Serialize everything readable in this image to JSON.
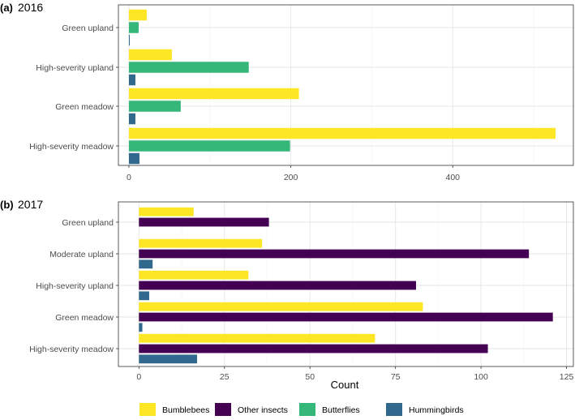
{
  "chart_data": [
    {
      "type": "bar",
      "panel_label": "(a)",
      "title": "2016",
      "categories": [
        "Green upland",
        "High-severity upland",
        "Green meadow",
        "High-severity meadow"
      ],
      "series": [
        {
          "name": "Bumblebees",
          "values": [
            22,
            53,
            210,
            527
          ]
        },
        {
          "name": "Butterflies",
          "values": [
            12,
            148,
            64,
            199
          ]
        },
        {
          "name": "Hummingbirds",
          "values": [
            1,
            8,
            8,
            13
          ]
        }
      ],
      "xlim": [
        -13,
        549
      ],
      "xticks": [
        0,
        200,
        400
      ],
      "xlabel": "",
      "ylabel": "",
      "grid": true
    },
    {
      "type": "bar",
      "panel_label": "(b)",
      "title": "2017",
      "categories": [
        "Green upland",
        "Moderate upland",
        "High-severity upland",
        "Green meadow",
        "High-severity meadow"
      ],
      "series": [
        {
          "name": "Bumblebees",
          "values": [
            16,
            36,
            32,
            83,
            69
          ]
        },
        {
          "name": "Other insects",
          "values": [
            38,
            114,
            81,
            121,
            102
          ]
        },
        {
          "name": "Hummingbirds",
          "values": [
            0,
            4,
            3,
            1,
            17
          ]
        }
      ],
      "xlim": [
        -6,
        127
      ],
      "xticks": [
        0,
        25,
        50,
        75,
        100,
        125
      ],
      "xlabel": "Count",
      "ylabel": "",
      "grid": true
    }
  ],
  "legend": {
    "position": "bottom",
    "items": [
      {
        "name": "Bumblebees",
        "color": "#FDE725"
      },
      {
        "name": "Other insects",
        "color": "#440154"
      },
      {
        "name": "Butterflies",
        "color": "#35B779"
      },
      {
        "name": "Hummingbirds",
        "color": "#31688E"
      }
    ]
  },
  "colors": {
    "Bumblebees": "#FDE725",
    "Other insects": "#440154",
    "Butterflies": "#35B779",
    "Hummingbirds": "#31688E",
    "panel_border": "#333333",
    "grid_major": "#E5E5E5",
    "grid_minor": "#F2F2F2",
    "axis_text": "#4D4D4D",
    "title_text": "#000000"
  }
}
